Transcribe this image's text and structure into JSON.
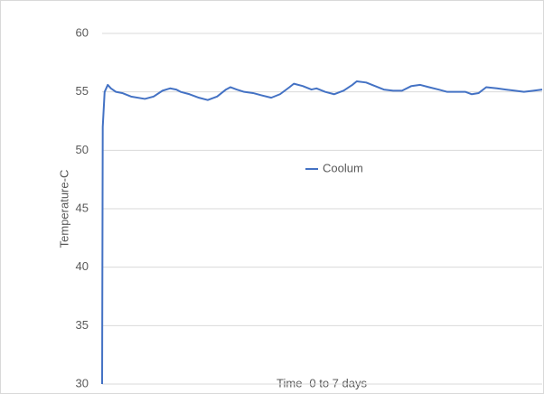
{
  "chart_data": {
    "type": "line",
    "x_label": "Time -0 to 7 days",
    "y_label": "Temperature-C",
    "xlim": [
      0,
      7
    ],
    "ylim": [
      30,
      60
    ],
    "yticks": [
      30,
      35,
      40,
      45,
      50,
      55,
      60
    ],
    "grid": true,
    "legend": "center",
    "x": [
      0,
      0.01,
      0.04,
      0.09,
      0.14,
      0.22,
      0.32,
      0.46,
      0.68,
      0.82,
      0.96,
      1.08,
      1.18,
      1.25,
      1.39,
      1.54,
      1.68,
      1.83,
      1.97,
      2.04,
      2.14,
      2.26,
      2.4,
      2.54,
      2.69,
      2.83,
      2.98,
      3.05,
      3.19,
      3.33,
      3.41,
      3.55,
      3.69,
      3.84,
      3.98,
      4.05,
      4.2,
      4.34,
      4.48,
      4.63,
      4.77,
      4.92,
      5.06,
      5.2,
      5.35,
      5.49,
      5.63,
      5.78,
      5.88,
      5.99,
      6.11,
      6.28,
      6.42,
      6.57,
      6.71,
      6.86,
      7.0
    ],
    "series": [
      {
        "name": "Coolum",
        "color": "#4472c4",
        "values": [
          30,
          52,
          55,
          55.6,
          55.3,
          55.0,
          54.9,
          54.6,
          54.4,
          54.6,
          55.1,
          55.3,
          55.2,
          55.0,
          54.8,
          54.5,
          54.3,
          54.6,
          55.2,
          55.4,
          55.2,
          55.0,
          54.9,
          54.7,
          54.5,
          54.8,
          55.4,
          55.7,
          55.5,
          55.2,
          55.3,
          55.0,
          54.8,
          55.1,
          55.6,
          55.9,
          55.8,
          55.5,
          55.2,
          55.1,
          55.1,
          55.5,
          55.6,
          55.4,
          55.2,
          55.0,
          55.0,
          55.0,
          54.8,
          54.9,
          55.4,
          55.3,
          55.2,
          55.1,
          55.0,
          55.1,
          55.2
        ]
      }
    ]
  }
}
